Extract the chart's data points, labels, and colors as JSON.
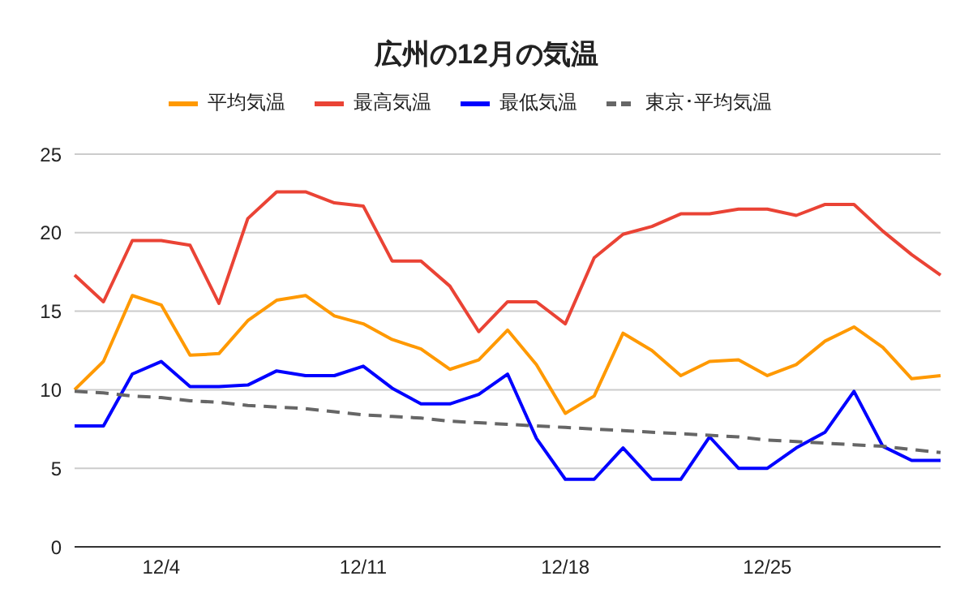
{
  "chart_data": {
    "type": "line",
    "title": "広州の12月の気温",
    "categories": [
      null,
      null,
      null,
      "12/4",
      null,
      null,
      null,
      null,
      null,
      null,
      "12/11",
      null,
      null,
      null,
      null,
      null,
      null,
      "12/18",
      null,
      null,
      null,
      null,
      null,
      null,
      "12/25",
      null,
      null,
      null,
      null,
      null,
      null
    ],
    "series": [
      {
        "name": "平均気温",
        "color": "#ff9900",
        "values": [
          10.0,
          11.8,
          16.0,
          15.4,
          12.2,
          12.3,
          14.4,
          15.7,
          16.0,
          14.7,
          14.2,
          13.2,
          12.6,
          11.3,
          11.9,
          13.8,
          11.6,
          8.5,
          9.6,
          13.6,
          12.5,
          10.9,
          11.8,
          11.9,
          10.9,
          11.6,
          13.1,
          14.0,
          12.7,
          10.7,
          10.9
        ]
      },
      {
        "name": "最高気温",
        "color": "#ea4335",
        "values": [
          17.3,
          15.6,
          19.5,
          19.5,
          19.2,
          15.5,
          20.9,
          22.6,
          22.6,
          21.9,
          21.7,
          18.2,
          18.2,
          16.6,
          13.7,
          15.6,
          15.6,
          14.2,
          18.4,
          19.9,
          20.4,
          21.2,
          21.2,
          21.5,
          21.5,
          21.1,
          21.8,
          21.8,
          20.1,
          18.6,
          17.3
        ]
      },
      {
        "name": "最低気温",
        "color": "#0000ff",
        "values": [
          7.7,
          7.7,
          11.0,
          11.8,
          10.2,
          10.2,
          10.3,
          11.2,
          10.9,
          10.9,
          11.5,
          10.1,
          9.1,
          9.1,
          9.7,
          11.0,
          6.9,
          4.3,
          4.3,
          6.3,
          4.3,
          4.3,
          7.0,
          5.0,
          5.0,
          6.3,
          7.3,
          9.9,
          6.4,
          5.5,
          5.5
        ]
      },
      {
        "name": "東京･平均気温",
        "color": "#666666",
        "line_style": "dashed",
        "values": [
          9.9,
          9.8,
          9.6,
          9.5,
          9.3,
          9.2,
          9.0,
          8.9,
          8.8,
          8.6,
          8.4,
          8.3,
          8.2,
          8.0,
          7.9,
          7.8,
          7.7,
          7.6,
          7.5,
          7.4,
          7.3,
          7.2,
          7.1,
          7.0,
          6.8,
          6.7,
          6.6,
          6.5,
          6.4,
          6.2,
          6.0
        ]
      }
    ],
    "ylim": [
      0,
      25
    ],
    "yticks": [
      0,
      5,
      10,
      15,
      20,
      25
    ],
    "grid": "y",
    "legend": "top",
    "marker": "none",
    "line_style": "solid"
  }
}
